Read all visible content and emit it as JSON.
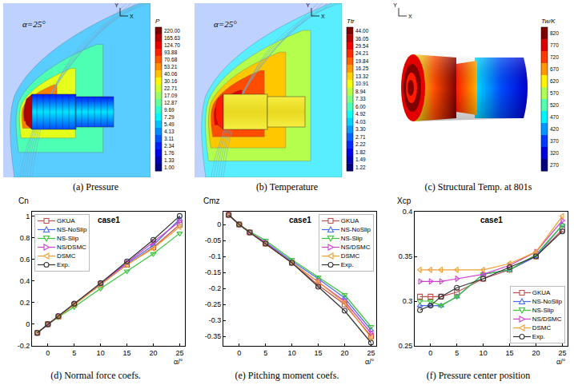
{
  "images": [
    {
      "caption": "(a) Pressure",
      "label": "α=25°",
      "axes": [
        "Y",
        "X"
      ],
      "colorbar": {
        "title": "P",
        "ticks": [
          {
            "value": 220,
            "label": "220.00"
          },
          {
            "value": 165.63,
            "label": "165.63"
          },
          {
            "value": 124.7,
            "label": "124.70"
          },
          {
            "value": 93.88,
            "label": "93.88"
          },
          {
            "value": 70.68,
            "label": "70.68"
          },
          {
            "value": 53.21,
            "label": "53.21"
          },
          {
            "value": 40.06,
            "label": "40.06"
          },
          {
            "value": 30.16,
            "label": "30.16"
          },
          {
            "value": 22.71,
            "label": "22.71"
          },
          {
            "value": 17.09,
            "label": "17.09"
          },
          {
            "value": 12.87,
            "label": "12.87"
          },
          {
            "value": 9.69,
            "label": "9.69"
          },
          {
            "value": 7.29,
            "label": "7.29"
          },
          {
            "value": 5.49,
            "label": "5.49"
          },
          {
            "value": 4.13,
            "label": "4.13"
          },
          {
            "value": 3.11,
            "label": "3.11"
          },
          {
            "value": 2.34,
            "label": "2.34"
          },
          {
            "value": 1.76,
            "label": "1.76"
          },
          {
            "value": 1.33,
            "label": "1.33"
          },
          {
            "value": 1,
            "label": "1.00"
          }
        ]
      }
    },
    {
      "caption": "(b) Temperature",
      "label": "α=25°",
      "axes": [
        "Y",
        "X"
      ],
      "colorbar": {
        "title": "Ttr",
        "ticks": [
          {
            "value": 44,
            "label": "44.00"
          },
          {
            "value": 36.05,
            "label": "36.05"
          },
          {
            "value": 29.54,
            "label": "29.54"
          },
          {
            "value": 24.21,
            "label": "24.21"
          },
          {
            "value": 19.84,
            "label": "19.84"
          },
          {
            "value": 16.25,
            "label": "16.25"
          },
          {
            "value": 13.32,
            "label": "13.32"
          },
          {
            "value": 10.91,
            "label": "10.91"
          },
          {
            "value": 8.94,
            "label": "8.94"
          },
          {
            "value": 7.33,
            "label": "7.33"
          },
          {
            "value": 6,
            "label": "6.00"
          },
          {
            "value": 4.92,
            "label": "4.92"
          },
          {
            "value": 4.03,
            "label": "4.03"
          },
          {
            "value": 3.3,
            "label": "3.30"
          },
          {
            "value": 2.71,
            "label": "2.71"
          },
          {
            "value": 2.22,
            "label": "2.22"
          },
          {
            "value": 1.82,
            "label": "1.82"
          },
          {
            "value": 1.49,
            "label": "1.49"
          },
          {
            "value": 1.22,
            "label": "1.22"
          }
        ]
      }
    },
    {
      "caption": "(c) Structural Temp. at 801s",
      "axes": [
        "Y",
        "X"
      ],
      "colorbar": {
        "title": "Tw/K",
        "ticks": [
          820,
          770,
          720,
          670,
          620,
          570,
          520,
          470,
          420,
          370,
          320,
          270
        ]
      }
    }
  ],
  "chart_data": [
    {
      "type": "line",
      "title": "case1",
      "caption": "(d) Normal force coefs.",
      "x_label": "α/°",
      "y_label": "Cn",
      "x": [
        -2,
        0,
        2,
        5,
        10,
        15,
        20,
        25
      ],
      "xlim": [
        -3,
        26
      ],
      "xticks": [
        0,
        5,
        10,
        15,
        20,
        25
      ],
      "ylim": [
        -0.2,
        1.04
      ],
      "yticks": [
        -0.2,
        0,
        0.2,
        0.4,
        0.6,
        0.8,
        1
      ],
      "grid": false,
      "legend": "upper left",
      "series": [
        {
          "name": "GKUA",
          "color": "#c0504d",
          "marker": "square",
          "values": [
            -0.08,
            0,
            0.07,
            0.18,
            0.37,
            0.55,
            0.71,
            0.92
          ]
        },
        {
          "name": "NS-NoSlip",
          "color": "#4a6cf0",
          "marker": "triangle-up",
          "values": [
            -0.08,
            0,
            0.075,
            0.185,
            0.375,
            0.56,
            0.73,
            0.97
          ]
        },
        {
          "name": "NS-Slip",
          "color": "#3ac43a",
          "marker": "triangle-down",
          "values": [
            -0.08,
            0,
            0.065,
            0.16,
            0.33,
            0.49,
            0.65,
            0.84
          ]
        },
        {
          "name": "NS/DSMC",
          "color": "#d040d0",
          "marker": "triangle-right",
          "values": [
            -0.08,
            0,
            0.075,
            0.185,
            0.375,
            0.57,
            0.76,
            0.95
          ]
        },
        {
          "name": "DSMC",
          "color": "#f0a030",
          "marker": "triangle-left",
          "values": [
            -0.08,
            0,
            0.07,
            0.18,
            0.37,
            0.55,
            0.7,
            0.9
          ]
        },
        {
          "name": "Exp.",
          "color": "#333333",
          "marker": "circle",
          "values": [
            -0.08,
            0,
            0.075,
            0.19,
            0.38,
            0.58,
            0.78,
            1.0
          ]
        }
      ]
    },
    {
      "type": "line",
      "title": "case1",
      "caption": "(e) Pitching moment coefs.",
      "x_label": "α/°",
      "y_label": "Cmz",
      "x": [
        -2,
        0,
        2,
        5,
        10,
        15,
        20,
        25
      ],
      "xlim": [
        -3,
        26
      ],
      "xticks": [
        0,
        5,
        10,
        15,
        20,
        25
      ],
      "ylim": [
        -0.38,
        0.04
      ],
      "yticks": [
        -0.35,
        -0.3,
        -0.25,
        -0.2,
        -0.15,
        -0.1,
        -0.05,
        0
      ],
      "grid": false,
      "legend": "upper right",
      "series": [
        {
          "name": "GKUA",
          "color": "#c0504d",
          "marker": "square",
          "values": [
            0.03,
            0,
            -0.025,
            -0.06,
            -0.12,
            -0.19,
            -0.25,
            -0.35
          ]
        },
        {
          "name": "NS-NoSlip",
          "color": "#4a6cf0",
          "marker": "triangle-up",
          "values": [
            0.03,
            0,
            -0.025,
            -0.055,
            -0.115,
            -0.17,
            -0.23,
            -0.33
          ]
        },
        {
          "name": "NS-Slip",
          "color": "#3ac43a",
          "marker": "triangle-down",
          "values": [
            0.03,
            0,
            -0.022,
            -0.05,
            -0.11,
            -0.165,
            -0.22,
            -0.32
          ]
        },
        {
          "name": "NS/DSMC",
          "color": "#d040d0",
          "marker": "triangle-right",
          "values": [
            0.03,
            0,
            -0.025,
            -0.057,
            -0.12,
            -0.18,
            -0.24,
            -0.34
          ]
        },
        {
          "name": "DSMC",
          "color": "#f0a030",
          "marker": "triangle-left",
          "values": [
            0.03,
            0,
            -0.025,
            -0.06,
            -0.12,
            -0.18,
            -0.245,
            -0.355
          ]
        },
        {
          "name": "Exp.",
          "color": "#333333",
          "marker": "circle",
          "values": [
            0.03,
            0,
            -0.025,
            -0.06,
            -0.12,
            -0.195,
            -0.27,
            -0.37
          ]
        }
      ]
    },
    {
      "type": "line",
      "title": "case1",
      "caption": "(f) Pressure center position",
      "x_label": "α/°",
      "y_label": "Xcp",
      "x": [
        -2,
        0,
        2,
        5,
        10,
        15,
        20,
        25
      ],
      "xlim": [
        -3,
        26
      ],
      "xticks": [
        0,
        5,
        10,
        15,
        20,
        25
      ],
      "ylim": [
        0.25,
        0.4
      ],
      "yticks": [
        0.25,
        0.3,
        0.35,
        0.4
      ],
      "grid": false,
      "legend": "lower right",
      "series": [
        {
          "name": "GKUA",
          "color": "#c0504d",
          "marker": "square",
          "values": [
            0.305,
            0.305,
            0.305,
            0.31,
            0.325,
            0.335,
            0.35,
            0.38
          ]
        },
        {
          "name": "NS-NoSlip",
          "color": "#4a6cf0",
          "marker": "triangle-up",
          "values": [
            0.295,
            0.295,
            0.295,
            0.305,
            0.33,
            0.335,
            0.35,
            0.385
          ]
        },
        {
          "name": "NS-Slip",
          "color": "#3ac43a",
          "marker": "triangle-down",
          "values": [
            0.3,
            0.3,
            0.295,
            0.305,
            0.33,
            0.335,
            0.352,
            0.385
          ]
        },
        {
          "name": "NS/DSMC",
          "color": "#d040d0",
          "marker": "triangle-right",
          "values": [
            0.322,
            0.322,
            0.322,
            0.325,
            0.33,
            0.34,
            0.355,
            0.39
          ]
        },
        {
          "name": "DSMC",
          "color": "#f0a030",
          "marker": "triangle-left",
          "values": [
            0.335,
            0.335,
            0.335,
            0.335,
            0.335,
            0.342,
            0.355,
            0.395
          ]
        },
        {
          "name": "Exp.",
          "color": "#333333",
          "marker": "circle",
          "values": [
            0.29,
            0.295,
            0.305,
            0.315,
            0.325,
            0.338,
            0.35,
            0.378
          ]
        }
      ]
    }
  ]
}
